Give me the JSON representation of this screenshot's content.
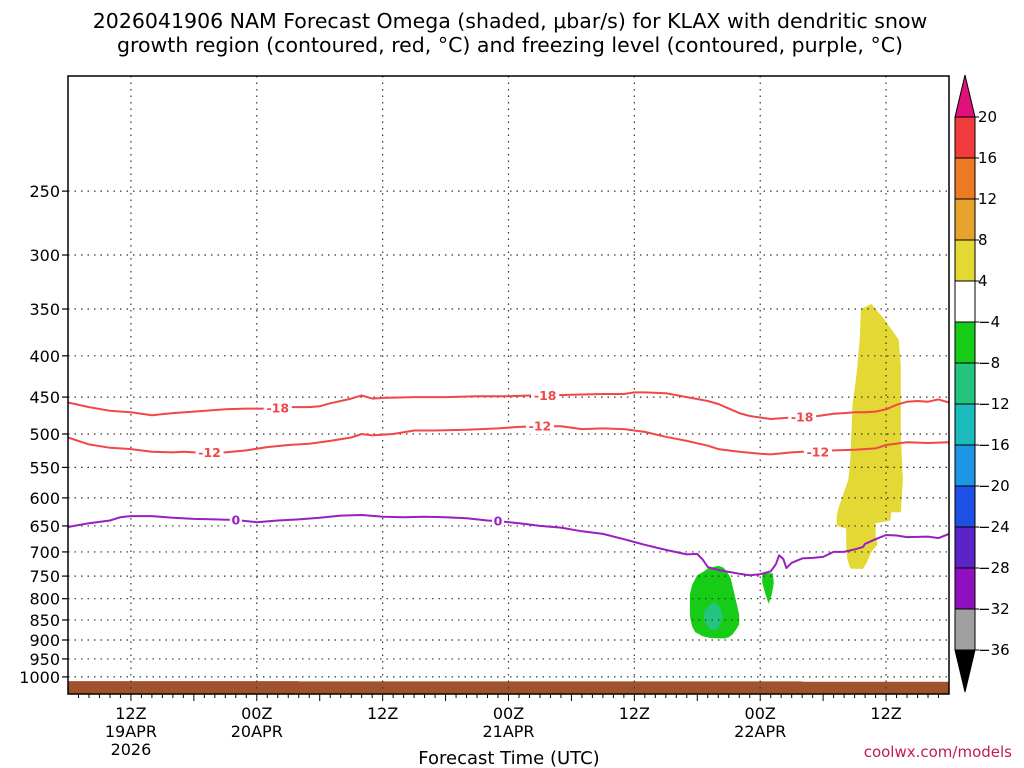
{
  "title": {
    "line1": "2026041906 NAM Forecast Omega (shaded, μbar/s) for KLAX with dendritic snow",
    "line2": "growth region (contoured, red, °C) and freezing level (contoured, purple, °C)"
  },
  "credit": "coolwx.com/models",
  "chart_data": {
    "type": "time-height contour",
    "xlabel": "Forecast Time (UTC)",
    "x_range_hours": [
      0,
      84
    ],
    "y_scale": "log-pressure",
    "y_range_hPa": [
      1050,
      180
    ],
    "y_ticks": [
      250,
      300,
      350,
      400,
      450,
      500,
      550,
      600,
      650,
      700,
      750,
      800,
      850,
      900,
      950,
      1000
    ],
    "x_ticks": [
      {
        "hour": 6,
        "line1": "12Z",
        "line2": "19APR",
        "line3": "2026"
      },
      {
        "hour": 18,
        "line1": "00Z",
        "line2": "20APR",
        "line3": ""
      },
      {
        "hour": 30,
        "line1": "12Z",
        "line2": "",
        "line3": ""
      },
      {
        "hour": 42,
        "line1": "00Z",
        "line2": "21APR",
        "line3": ""
      },
      {
        "hour": 54,
        "line1": "12Z",
        "line2": "",
        "line3": ""
      },
      {
        "hour": 66,
        "line1": "00Z",
        "line2": "22APR",
        "line3": ""
      },
      {
        "hour": 78,
        "line1": "12Z",
        "line2": "",
        "line3": ""
      }
    ],
    "grid": true,
    "colorbar": {
      "placement": "right",
      "labels": [
        "20",
        "16",
        "12",
        "8",
        "4",
        "−4",
        "−8",
        "−12",
        "−16",
        "−20",
        "−24",
        "−28",
        "−32",
        "−36"
      ],
      "colors": [
        "#f03c3c",
        "#ef7a24",
        "#e6a42c",
        "#e4d834",
        "#ffffff",
        "#16cc16",
        "#22c47e",
        "#1cbcbc",
        "#1e96e6",
        "#1e50e6",
        "#5a24c8",
        "#9010c0",
        "#a0a0a0"
      ],
      "top_arrow_color": "#e0107c",
      "bottom_arrow_color": "#000000"
    },
    "contours": [
      {
        "label": "-18",
        "color": "#f04848",
        "label_hours": [
          20,
          45.5,
          70
        ],
        "points": [
          [
            0,
            457
          ],
          [
            2,
            463
          ],
          [
            4,
            468
          ],
          [
            6,
            470
          ],
          [
            8,
            474
          ],
          [
            10,
            471
          ],
          [
            12,
            469
          ],
          [
            15,
            466
          ],
          [
            17,
            465
          ],
          [
            19,
            465
          ],
          [
            21,
            463
          ],
          [
            23,
            463
          ],
          [
            24,
            462
          ],
          [
            25,
            458
          ],
          [
            26,
            455
          ],
          [
            27,
            452
          ],
          [
            28,
            448
          ],
          [
            29,
            452
          ],
          [
            30,
            451
          ],
          [
            33,
            450
          ],
          [
            36,
            450
          ],
          [
            39,
            449
          ],
          [
            42,
            449
          ],
          [
            44,
            448
          ],
          [
            45.5,
            448
          ],
          [
            48,
            447
          ],
          [
            51,
            446
          ],
          [
            53,
            446
          ],
          [
            54,
            444
          ],
          [
            55,
            444
          ],
          [
            57,
            445
          ],
          [
            59,
            450
          ],
          [
            61,
            455
          ],
          [
            62,
            459
          ],
          [
            63,
            465
          ],
          [
            64,
            471
          ],
          [
            65,
            475
          ],
          [
            66,
            477
          ],
          [
            67,
            479
          ],
          [
            68,
            478
          ],
          [
            69,
            477
          ],
          [
            70,
            476
          ],
          [
            71,
            476
          ],
          [
            72,
            474
          ],
          [
            73,
            472
          ],
          [
            74,
            471
          ],
          [
            75,
            470
          ],
          [
            76,
            470
          ],
          [
            77,
            469
          ],
          [
            78,
            466
          ],
          [
            79,
            460
          ],
          [
            80,
            456
          ],
          [
            81,
            455
          ],
          [
            82,
            456
          ],
          [
            83,
            453
          ],
          [
            84,
            457
          ]
        ]
      },
      {
        "label": "-12",
        "color": "#f04848",
        "label_hours": [
          13.5,
          45,
          71.5
        ],
        "points": [
          [
            0,
            505
          ],
          [
            2,
            515
          ],
          [
            4,
            520
          ],
          [
            6,
            522
          ],
          [
            8,
            526
          ],
          [
            10,
            527
          ],
          [
            11,
            526
          ],
          [
            12,
            527
          ],
          [
            13.5,
            527
          ],
          [
            15,
            527
          ],
          [
            17,
            524
          ],
          [
            19,
            519
          ],
          [
            21,
            516
          ],
          [
            23,
            514
          ],
          [
            25,
            510
          ],
          [
            27,
            505
          ],
          [
            28,
            500
          ],
          [
            29,
            502
          ],
          [
            31,
            500
          ],
          [
            33,
            495
          ],
          [
            35,
            495
          ],
          [
            38,
            494
          ],
          [
            41,
            492
          ],
          [
            43,
            490
          ],
          [
            45,
            489
          ],
          [
            47,
            489
          ],
          [
            49,
            493
          ],
          [
            51,
            492
          ],
          [
            53,
            493
          ],
          [
            55,
            497
          ],
          [
            57,
            504
          ],
          [
            59,
            510
          ],
          [
            61,
            517
          ],
          [
            62,
            522
          ],
          [
            64,
            526
          ],
          [
            66,
            529
          ],
          [
            67,
            530
          ],
          [
            69,
            527
          ],
          [
            70,
            526
          ],
          [
            71.5,
            526
          ],
          [
            73,
            524
          ],
          [
            75,
            523
          ],
          [
            77,
            521
          ],
          [
            78,
            516
          ],
          [
            80,
            512
          ],
          [
            82,
            513
          ],
          [
            84,
            512
          ]
        ]
      },
      {
        "label": "0",
        "color": "#9b1ec2",
        "label_hours": [
          16,
          41
        ],
        "points": [
          [
            0,
            652
          ],
          [
            2,
            645
          ],
          [
            4,
            640
          ],
          [
            5,
            634
          ],
          [
            6,
            632
          ],
          [
            8,
            632
          ],
          [
            10,
            635
          ],
          [
            12,
            637
          ],
          [
            14,
            638
          ],
          [
            16,
            639
          ],
          [
            18,
            643
          ],
          [
            20,
            640
          ],
          [
            22,
            638
          ],
          [
            24,
            635
          ],
          [
            26,
            631
          ],
          [
            28,
            630
          ],
          [
            30,
            633
          ],
          [
            32,
            634
          ],
          [
            34,
            633
          ],
          [
            36,
            634
          ],
          [
            38,
            636
          ],
          [
            40,
            640
          ],
          [
            41,
            641
          ],
          [
            43,
            645
          ],
          [
            45,
            650
          ],
          [
            47,
            653
          ],
          [
            49,
            660
          ],
          [
            51,
            665
          ],
          [
            53,
            675
          ],
          [
            55,
            686
          ],
          [
            57,
            696
          ],
          [
            59,
            705
          ],
          [
            60,
            704
          ],
          [
            60.5,
            715
          ],
          [
            61,
            731
          ],
          [
            62,
            737
          ],
          [
            63,
            741
          ],
          [
            64,
            745
          ],
          [
            65,
            748
          ],
          [
            66,
            746
          ],
          [
            67,
            740
          ],
          [
            67.5,
            725
          ],
          [
            67.8,
            707
          ],
          [
            68.2,
            714
          ],
          [
            68.5,
            733
          ],
          [
            69,
            722
          ],
          [
            70,
            713
          ],
          [
            71,
            712
          ],
          [
            72,
            710
          ],
          [
            73,
            700
          ],
          [
            74,
            700
          ],
          [
            75,
            695
          ],
          [
            75.8,
            690
          ],
          [
            76,
            684
          ],
          [
            77,
            675
          ],
          [
            78,
            667
          ],
          [
            79,
            668
          ],
          [
            80,
            671
          ],
          [
            82,
            670
          ],
          [
            83,
            673
          ],
          [
            84,
            665
          ]
        ]
      }
    ],
    "shaded_regions": [
      {
        "value_range": "-8 to -4",
        "color": "#16cc16",
        "points": [
          [
            62,
            728
          ],
          [
            61,
            734
          ],
          [
            60.5,
            742
          ],
          [
            60,
            748
          ],
          [
            59.8,
            756
          ],
          [
            59.5,
            770
          ],
          [
            59.3,
            790
          ],
          [
            59.3,
            815
          ],
          [
            59.3,
            840
          ],
          [
            59.5,
            865
          ],
          [
            59.8,
            880
          ],
          [
            60.5,
            890
          ],
          [
            61.2,
            895
          ],
          [
            62,
            896
          ],
          [
            62.6,
            896
          ],
          [
            63,
            893
          ],
          [
            63.4,
            885
          ],
          [
            63.8,
            870
          ],
          [
            64,
            860
          ],
          [
            64,
            838
          ],
          [
            63.8,
            815
          ],
          [
            63.6,
            795
          ],
          [
            63.4,
            775
          ],
          [
            63.2,
            755
          ],
          [
            62.8,
            740
          ],
          [
            62.5,
            732
          ],
          [
            62,
            728
          ]
        ]
      },
      {
        "value_range": "-12 to -8",
        "color": "#22c47e",
        "points": [
          [
            61.5,
            808
          ],
          [
            60.7,
            827
          ],
          [
            60.6,
            848
          ],
          [
            61.1,
            870
          ],
          [
            61.6,
            876
          ],
          [
            62.1,
            866
          ],
          [
            62.4,
            846
          ],
          [
            62.3,
            826
          ],
          [
            61.9,
            812
          ],
          [
            61.5,
            808
          ]
        ]
      },
      {
        "value_range": "-8 to -4",
        "color": "#16cc16",
        "points": [
          [
            66.2,
            744
          ],
          [
            66.2,
            765
          ],
          [
            66.5,
            790
          ],
          [
            66.8,
            812
          ],
          [
            67.1,
            790
          ],
          [
            67.3,
            765
          ],
          [
            67.2,
            744
          ],
          [
            66.2,
            744
          ]
        ]
      },
      {
        "value_range": "4 to 8",
        "color": "#e4d834",
        "points": [
          [
            75.6,
            350
          ],
          [
            75.5,
            380
          ],
          [
            75.2,
            420
          ],
          [
            74.8,
            460
          ],
          [
            74.7,
            495
          ],
          [
            74.6,
            535
          ],
          [
            74.4,
            570
          ],
          [
            73.5,
            615
          ],
          [
            73.3,
            630
          ],
          [
            73.3,
            650
          ],
          [
            74.2,
            655
          ],
          [
            74.2,
            690
          ],
          [
            74.3,
            715
          ],
          [
            74.6,
            734
          ],
          [
            75.8,
            735
          ],
          [
            76.2,
            720
          ],
          [
            76.6,
            700
          ],
          [
            77.2,
            685
          ],
          [
            77,
            670
          ],
          [
            77,
            645
          ],
          [
            78.4,
            640
          ],
          [
            78.5,
            625
          ],
          [
            79.4,
            625
          ],
          [
            79.6,
            570
          ],
          [
            79.4,
            500
          ],
          [
            79.4,
            410
          ],
          [
            79.2,
            382
          ],
          [
            77.8,
            360
          ],
          [
            76.6,
            345
          ],
          [
            75.6,
            350
          ]
        ]
      }
    ],
    "terrain": {
      "color": "#a0522d",
      "segments": [
        [
          0,
          1012
        ],
        [
          22,
          1012
        ],
        [
          22,
          1013
        ],
        [
          70,
          1013
        ],
        [
          70,
          1014
        ],
        [
          84,
          1014
        ]
      ]
    }
  }
}
